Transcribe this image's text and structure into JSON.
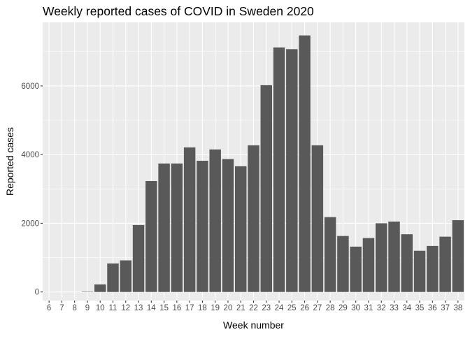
{
  "chart_data": {
    "type": "bar",
    "title": "Weekly reported cases of COVID in Sweden 2020",
    "xlabel": "Week number",
    "ylabel": "Reported cases",
    "categories": [
      "6",
      "7",
      "8",
      "9",
      "10",
      "11",
      "12",
      "13",
      "14",
      "15",
      "16",
      "17",
      "18",
      "19",
      "20",
      "21",
      "22",
      "23",
      "24",
      "25",
      "26",
      "27",
      "28",
      "29",
      "30",
      "31",
      "32",
      "33",
      "34",
      "35",
      "36",
      "37",
      "38"
    ],
    "values": [
      1,
      0,
      0,
      10,
      220,
      830,
      920,
      1950,
      3230,
      3740,
      3740,
      4210,
      3820,
      4150,
      3870,
      3660,
      4270,
      6020,
      7120,
      7070,
      7470,
      4270,
      2180,
      1630,
      1320,
      1570,
      2000,
      2050,
      1680,
      1200,
      1340,
      1610,
      2090
    ],
    "ylim": [
      -250,
      7850
    ],
    "yticks": [
      0,
      2000,
      4000,
      6000
    ],
    "grid": true,
    "legend": "none",
    "colors": {
      "panel_background": "#ebebeb",
      "gridline": "#ffffff",
      "bar_fill": "#595959"
    }
  }
}
